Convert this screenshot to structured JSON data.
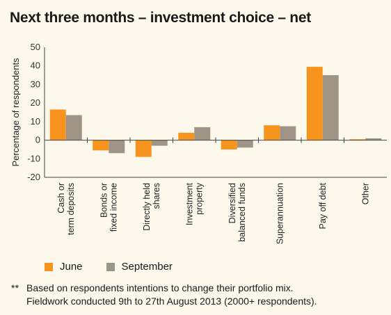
{
  "title": "Next three months – investment choice – net",
  "colors": {
    "june": "#f7941d",
    "september": "#a09486"
  },
  "chart_data": {
    "type": "bar",
    "categories": [
      [
        "Cash or",
        "term deposits"
      ],
      [
        "Bonds or",
        "fixed income"
      ],
      [
        "Directly held",
        "shares"
      ],
      [
        "Investment",
        "property"
      ],
      [
        "Diversified",
        "balanced funds"
      ],
      [
        "Superannuation"
      ],
      [
        "Pay off debt"
      ],
      [
        "Other"
      ]
    ],
    "series": [
      {
        "name": "June",
        "values": [
          16.5,
          -5.5,
          -9,
          4,
          -5,
          8,
          39.5,
          0.5
        ]
      },
      {
        "name": "September",
        "values": [
          13.5,
          -7,
          -3,
          7,
          -4,
          7.5,
          35,
          1
        ]
      }
    ],
    "ylabel": "Percentage of respondents",
    "yticks": [
      50,
      40,
      30,
      20,
      10,
      0,
      -10,
      -20
    ],
    "ylim": [
      -20,
      50
    ],
    "grid": false,
    "legend_position": "bottom-left"
  },
  "footnote": {
    "mark": "**",
    "line1": "Based on respondents intentions to change their portfolio mix.",
    "line2": "Fieldwork conducted 9th to 27th August 2013 (2000+ respondents)."
  }
}
